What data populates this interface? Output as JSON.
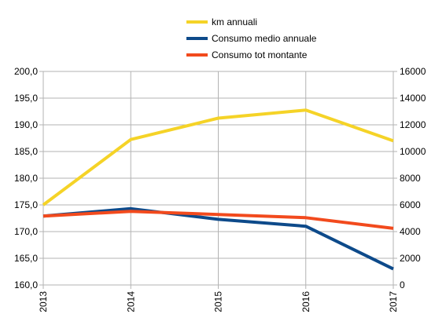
{
  "chart_data": {
    "type": "line",
    "categories": [
      "2013",
      "2014",
      "2015",
      "2016",
      "2017"
    ],
    "y_left": {
      "min": 160,
      "max": 200,
      "step": 5,
      "ticks": [
        "160,0",
        "165,0",
        "170,0",
        "175,0",
        "180,0",
        "185,0",
        "190,0",
        "195,0",
        "200,0"
      ]
    },
    "y_right": {
      "min": 0,
      "max": 16000,
      "step": 2000,
      "ticks": [
        "0",
        "2000",
        "4000",
        "6000",
        "8000",
        "10000",
        "12000",
        "14000",
        "16000"
      ]
    },
    "grid": true,
    "legend_position": "top-center",
    "series": [
      {
        "name": "km annuali",
        "axis": "right",
        "color": "#f5d327",
        "values": [
          6000,
          10900,
          12500,
          13100,
          10800
        ]
      },
      {
        "name": "Consumo medio annuale",
        "axis": "left",
        "color": "#0d4a8a",
        "values": [
          172.9,
          174.3,
          172.3,
          171.0,
          163.0
        ]
      },
      {
        "name": "Consumo tot montante",
        "axis": "left",
        "color": "#f24a1d",
        "values": [
          172.9,
          173.8,
          173.2,
          172.6,
          170.6
        ]
      }
    ]
  }
}
